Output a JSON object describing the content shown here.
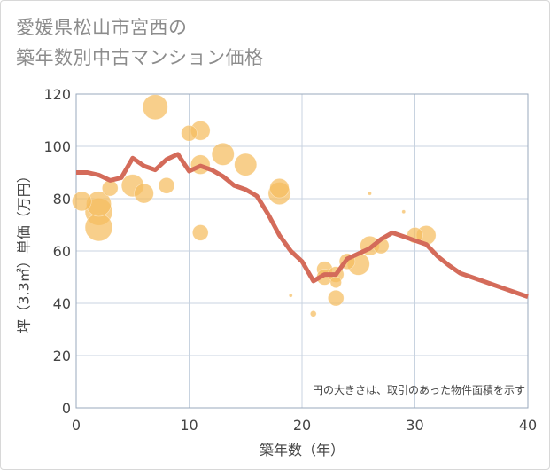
{
  "title": {
    "line1": "愛媛県松山市宮西の",
    "line2": "築年数別中古マンション価格"
  },
  "note": "円の大きさは、取引のあった物件面積を示す",
  "colors": {
    "line": "#d46b5a",
    "bubble": "#f5bd5e",
    "grid": "#c8d3e0",
    "plot_border": "#9aa9bd"
  },
  "chart_data": {
    "type": "scatter",
    "xlabel": "築年数（年）",
    "ylabel": "坪（3.3㎡）単価（万円）",
    "xlim": [
      0,
      40
    ],
    "ylim": [
      0,
      120
    ],
    "x_ticks": [
      "0",
      "10",
      "20",
      "30",
      "40"
    ],
    "y_ticks": [
      "0",
      "20",
      "40",
      "60",
      "80",
      "100",
      "120"
    ],
    "grid": true,
    "bubbles": [
      {
        "x": 0.5,
        "y": 79,
        "size": 3
      },
      {
        "x": 2,
        "y": 78,
        "size": 5
      },
      {
        "x": 2,
        "y": 75,
        "size": 6
      },
      {
        "x": 2,
        "y": 69,
        "size": 6
      },
      {
        "x": 3,
        "y": 84,
        "size": 2
      },
      {
        "x": 5,
        "y": 85,
        "size": 4
      },
      {
        "x": 6,
        "y": 82,
        "size": 3
      },
      {
        "x": 7,
        "y": 115,
        "size": 5
      },
      {
        "x": 8,
        "y": 85,
        "size": 2
      },
      {
        "x": 10,
        "y": 105,
        "size": 2
      },
      {
        "x": 11,
        "y": 106,
        "size": 3
      },
      {
        "x": 11,
        "y": 93,
        "size": 3
      },
      {
        "x": 11,
        "y": 67,
        "size": 2
      },
      {
        "x": 13,
        "y": 97,
        "size": 4
      },
      {
        "x": 15,
        "y": 93,
        "size": 4
      },
      {
        "x": 18,
        "y": 82,
        "size": 4
      },
      {
        "x": 18,
        "y": 84,
        "size": 3
      },
      {
        "x": 19,
        "y": 43,
        "size": 0.1
      },
      {
        "x": 21,
        "y": 36,
        "size": 0.3
      },
      {
        "x": 22,
        "y": 53,
        "size": 2
      },
      {
        "x": 22,
        "y": 50,
        "size": 2
      },
      {
        "x": 23,
        "y": 51,
        "size": 2
      },
      {
        "x": 23,
        "y": 48,
        "size": 1
      },
      {
        "x": 23,
        "y": 42,
        "size": 2
      },
      {
        "x": 24,
        "y": 56,
        "size": 2
      },
      {
        "x": 25,
        "y": 55,
        "size": 4
      },
      {
        "x": 26,
        "y": 62,
        "size": 3
      },
      {
        "x": 26,
        "y": 82,
        "size": 0.1
      },
      {
        "x": 27,
        "y": 62,
        "size": 2
      },
      {
        "x": 29,
        "y": 75,
        "size": 0.1
      },
      {
        "x": 30,
        "y": 66,
        "size": 2
      },
      {
        "x": 31,
        "y": 66,
        "size": 3
      }
    ],
    "series": [
      {
        "x": [
          0,
          1,
          2,
          3,
          4,
          5,
          6,
          7,
          8,
          9,
          10,
          11,
          12,
          13,
          14,
          15,
          16,
          17,
          18,
          19,
          20,
          21,
          22,
          23,
          24,
          25,
          26,
          27,
          28,
          29,
          30,
          31,
          32,
          33,
          34,
          35,
          36,
          37,
          38,
          39,
          40
        ],
        "values": [
          90,
          90,
          89,
          87,
          88,
          95.5,
          92.5,
          91,
          95,
          97,
          90.5,
          92.5,
          91,
          88.5,
          85,
          83.5,
          81,
          74,
          66,
          60,
          56,
          48.5,
          51,
          51,
          57,
          59,
          61,
          64.5,
          67,
          65.5,
          64,
          62.5,
          58,
          54.5,
          51.5,
          50,
          48.5,
          47,
          45.5,
          44,
          42.5
        ]
      }
    ]
  }
}
